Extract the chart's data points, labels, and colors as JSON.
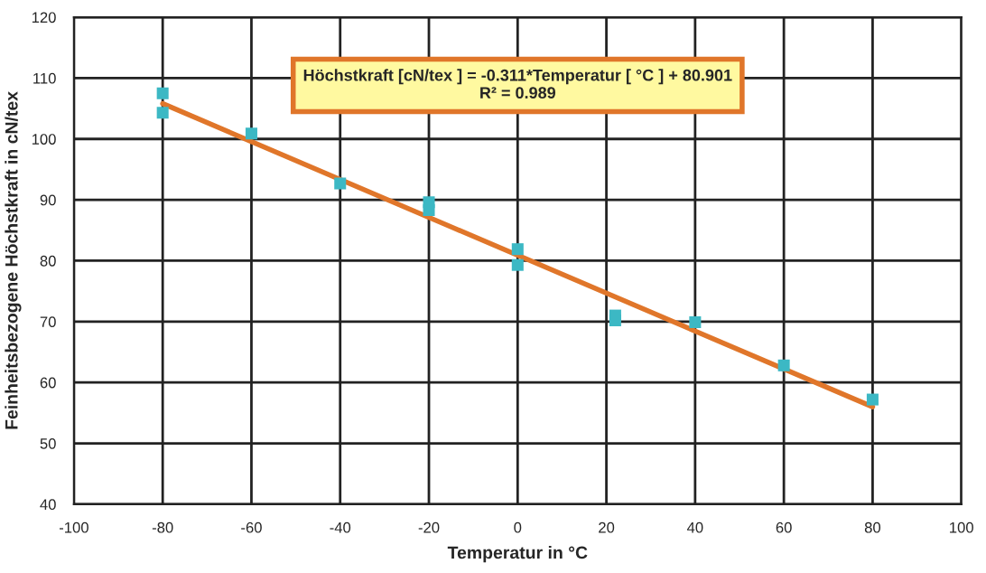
{
  "chart_data": {
    "type": "scatter",
    "xlabel": "Temperatur in °C",
    "ylabel": "Feinheitsbezogene Höchstkraft in cN/tex",
    "xlim": [
      -100,
      100
    ],
    "xticks": [
      -100,
      -80,
      -60,
      -40,
      -20,
      0,
      20,
      40,
      60,
      80,
      100
    ],
    "ylim": [
      40,
      120
    ],
    "yticks": [
      40,
      50,
      60,
      70,
      80,
      90,
      100,
      110,
      120
    ],
    "grid": true,
    "series": [
      {
        "marker": "square",
        "color": "#3cb8c4",
        "x": [
          -80,
          -80,
          -60,
          -40,
          -20,
          -20,
          0,
          0,
          22,
          22,
          40,
          60,
          80
        ],
        "values": [
          107.5,
          104.3,
          100.9,
          92.7,
          89.6,
          88.3,
          81.9,
          79.3,
          71.0,
          70.2,
          69.9,
          62.8,
          57.2
        ]
      },
      {
        "type": "line",
        "marker": "none",
        "color": "#e0762a",
        "x": [
          -80,
          80
        ],
        "values": [
          105.8,
          56.0
        ]
      }
    ],
    "annotations": [
      "Höchstkraft [cN/tex ] = -0.311*Temperatur [ °C ] + 80.901\nR² = 0.989"
    ]
  }
}
